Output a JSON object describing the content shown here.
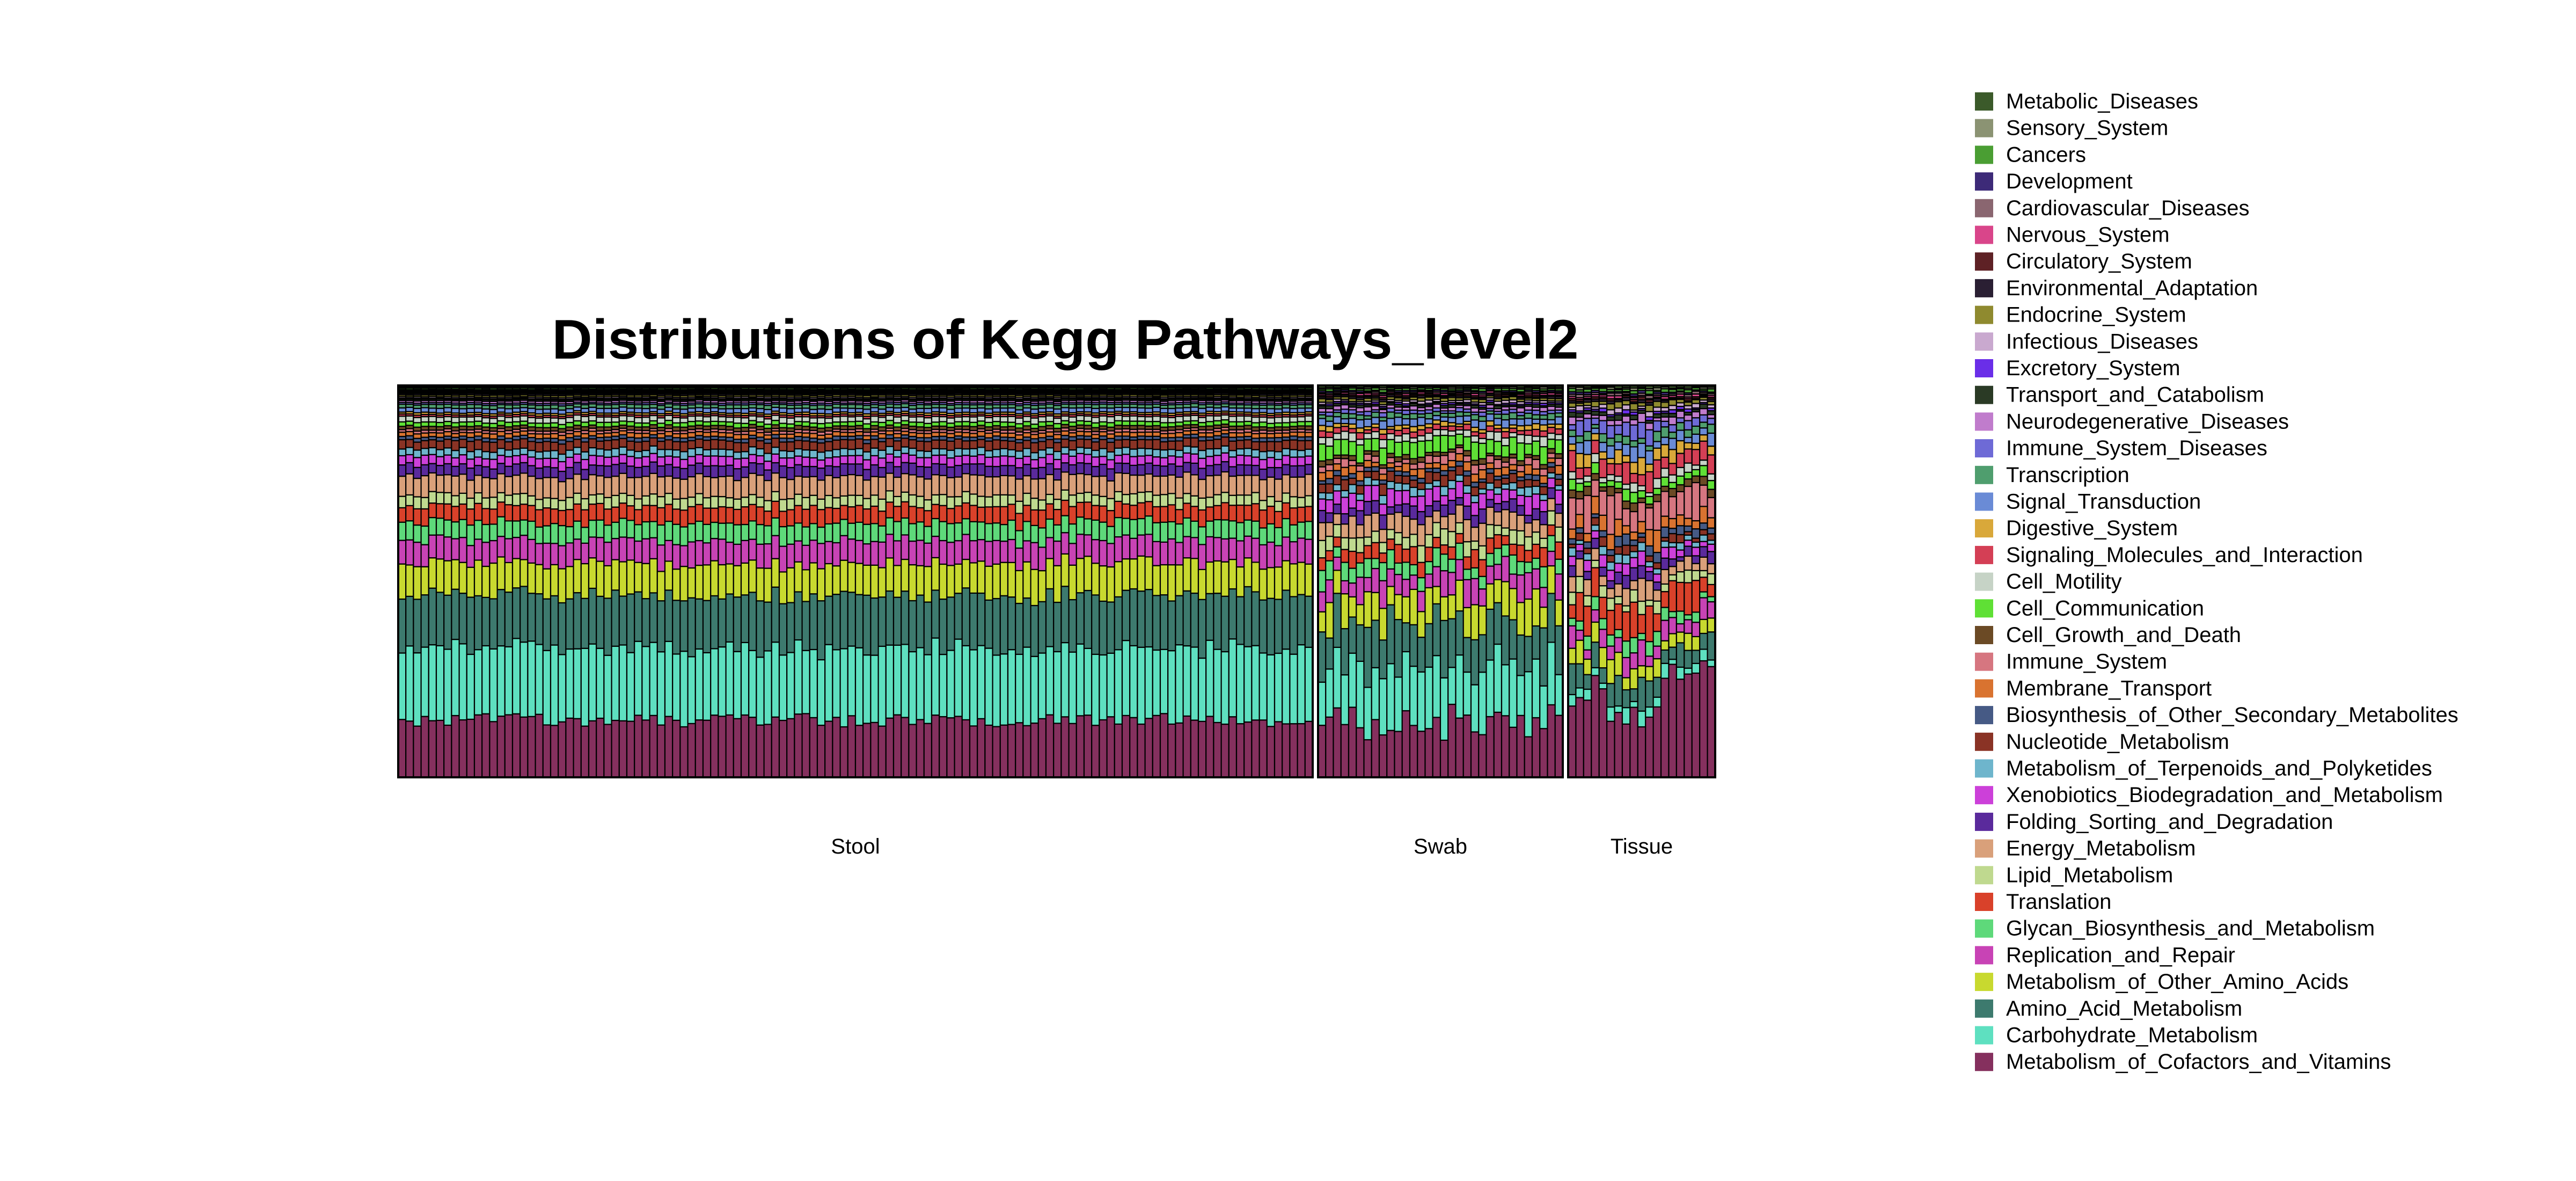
{
  "chart_data": {
    "type": "bar",
    "stacked": true,
    "normalized": true,
    "title": "Distributions of Kegg Pathways_level2",
    "xlabel": "",
    "ylabel": "",
    "ylim": [
      0,
      1
    ],
    "legend_position": "right",
    "groups": [
      {
        "name": "Stool",
        "n_samples": 120
      },
      {
        "name": "Swab",
        "n_samples": 32
      },
      {
        "name": "Tissue",
        "n_samples": 19
      }
    ],
    "series": [
      {
        "name": "Metabolic_Diseases",
        "color": "#3b5a2a",
        "mean_fraction": {
          "Stool": 0.004,
          "Swab": 0.005,
          "Tissue": 0.006
        }
      },
      {
        "name": "Sensory_System",
        "color": "#8b9373",
        "mean_fraction": {
          "Stool": 0.003,
          "Swab": 0.004,
          "Tissue": 0.005
        }
      },
      {
        "name": "Cancers",
        "color": "#4a9e33",
        "mean_fraction": {
          "Stool": 0.004,
          "Swab": 0.006,
          "Tissue": 0.007
        }
      },
      {
        "name": "Development",
        "color": "#3d2a78",
        "mean_fraction": {
          "Stool": 0.003,
          "Swab": 0.004,
          "Tissue": 0.005
        }
      },
      {
        "name": "Cardiovascular_Diseases",
        "color": "#8a6670",
        "mean_fraction": {
          "Stool": 0.003,
          "Swab": 0.004,
          "Tissue": 0.006
        }
      },
      {
        "name": "Nervous_System",
        "color": "#d9458a",
        "mean_fraction": {
          "Stool": 0.003,
          "Swab": 0.005,
          "Tissue": 0.006
        }
      },
      {
        "name": "Circulatory_System",
        "color": "#5e2125",
        "mean_fraction": {
          "Stool": 0.003,
          "Swab": 0.004,
          "Tissue": 0.005
        }
      },
      {
        "name": "Environmental_Adaptation",
        "color": "#2a1f33",
        "mean_fraction": {
          "Stool": 0.004,
          "Swab": 0.005,
          "Tissue": 0.006
        }
      },
      {
        "name": "Endocrine_System",
        "color": "#8f8a2f",
        "mean_fraction": {
          "Stool": 0.005,
          "Swab": 0.008,
          "Tissue": 0.012
        }
      },
      {
        "name": "Infectious_Diseases",
        "color": "#c9a9cf",
        "mean_fraction": {
          "Stool": 0.004,
          "Swab": 0.007,
          "Tissue": 0.01
        }
      },
      {
        "name": "Excretory_System",
        "color": "#6a2ee8",
        "mean_fraction": {
          "Stool": 0.003,
          "Swab": 0.005,
          "Tissue": 0.008
        }
      },
      {
        "name": "Transport_and_Catabolism",
        "color": "#2a3a25",
        "mean_fraction": {
          "Stool": 0.004,
          "Swab": 0.006,
          "Tissue": 0.01
        }
      },
      {
        "name": "Neurodegenerative_Diseases",
        "color": "#c07ccc",
        "mean_fraction": {
          "Stool": 0.006,
          "Swab": 0.01,
          "Tissue": 0.016
        }
      },
      {
        "name": "Immune_System_Diseases",
        "color": "#6e6ad6",
        "mean_fraction": {
          "Stool": 0.005,
          "Swab": 0.01,
          "Tissue": 0.03
        }
      },
      {
        "name": "Transcription",
        "color": "#4f9e6e",
        "mean_fraction": {
          "Stool": 0.01,
          "Swab": 0.014,
          "Tissue": 0.02
        }
      },
      {
        "name": "Signal_Transduction",
        "color": "#6a8bd6",
        "mean_fraction": {
          "Stool": 0.012,
          "Swab": 0.018,
          "Tissue": 0.03
        }
      },
      {
        "name": "Digestive_System",
        "color": "#d9a83a",
        "mean_fraction": {
          "Stool": 0.006,
          "Swab": 0.012,
          "Tissue": 0.03
        }
      },
      {
        "name": "Signaling_Molecules_and_Interaction",
        "color": "#d43f55",
        "mean_fraction": {
          "Stool": 0.006,
          "Swab": 0.014,
          "Tissue": 0.04
        }
      },
      {
        "name": "Cell_Motility",
        "color": "#c6d3c6",
        "mean_fraction": {
          "Stool": 0.015,
          "Swab": 0.02,
          "Tissue": 0.02
        }
      },
      {
        "name": "Cell_Communication",
        "color": "#5fe035",
        "mean_fraction": {
          "Stool": 0.012,
          "Swab": 0.04,
          "Tissue": 0.025
        }
      },
      {
        "name": "Cell_Growth_and_Death",
        "color": "#6b4a25",
        "mean_fraction": {
          "Stool": 0.01,
          "Swab": 0.012,
          "Tissue": 0.02
        }
      },
      {
        "name": "Immune_System",
        "color": "#d67680",
        "mean_fraction": {
          "Stool": 0.008,
          "Swab": 0.02,
          "Tissue": 0.08
        }
      },
      {
        "name": "Membrane_Transport",
        "color": "#d97330",
        "mean_fraction": {
          "Stool": 0.012,
          "Swab": 0.02,
          "Tissue": 0.04
        }
      },
      {
        "name": "Biosynthesis_of_Other_Secondary_Metabolites",
        "color": "#465a85",
        "mean_fraction": {
          "Stool": 0.01,
          "Swab": 0.012,
          "Tissue": 0.02
        }
      },
      {
        "name": "Nucleotide_Metabolism",
        "color": "#8a3325",
        "mean_fraction": {
          "Stool": 0.025,
          "Swab": 0.025,
          "Tissue": 0.02
        }
      },
      {
        "name": "Metabolism_of_Terpenoids_and_Polyketides",
        "color": "#6eb5cc",
        "mean_fraction": {
          "Stool": 0.02,
          "Swab": 0.02,
          "Tissue": 0.02
        }
      },
      {
        "name": "Xenobiotics_Biodegradation_and_Metabolism",
        "color": "#cc40d9",
        "mean_fraction": {
          "Stool": 0.025,
          "Swab": 0.04,
          "Tissue": 0.025
        }
      },
      {
        "name": "Folding_Sorting_and_Degradation",
        "color": "#5a2a9c",
        "mean_fraction": {
          "Stool": 0.03,
          "Swab": 0.03,
          "Tissue": 0.025
        }
      },
      {
        "name": "Energy_Metabolism",
        "color": "#d9a07a",
        "mean_fraction": {
          "Stool": 0.055,
          "Swab": 0.05,
          "Tissue": 0.04
        }
      },
      {
        "name": "Lipid_Metabolism",
        "color": "#bfd98f",
        "mean_fraction": {
          "Stool": 0.03,
          "Swab": 0.035,
          "Tissue": 0.03
        }
      },
      {
        "name": "Translation",
        "color": "#d9412a",
        "mean_fraction": {
          "Stool": 0.045,
          "Swab": 0.04,
          "Tissue": 0.07
        }
      },
      {
        "name": "Glycan_Biosynthesis_and_Metabolism",
        "color": "#5ed97a",
        "mean_fraction": {
          "Stool": 0.05,
          "Swab": 0.045,
          "Tissue": 0.03
        }
      },
      {
        "name": "Replication_and_Repair",
        "color": "#c843b5",
        "mean_fraction": {
          "Stool": 0.065,
          "Swab": 0.06,
          "Tissue": 0.045
        }
      },
      {
        "name": "Metabolism_of_Other_Amino_Acids",
        "color": "#c8d92f",
        "mean_fraction": {
          "Stool": 0.09,
          "Swab": 0.08,
          "Tissue": 0.05
        }
      },
      {
        "name": "Amino_Acid_Metabolism",
        "color": "#3d7a6e",
        "mean_fraction": {
          "Stool": 0.15,
          "Swab": 0.13,
          "Tissue": 0.06
        }
      },
      {
        "name": "Carbohydrate_Metabolism",
        "color": "#5ee0c0",
        "mean_fraction": {
          "Stool": 0.2,
          "Swab": 0.16,
          "Tissue": 0.03
        }
      },
      {
        "name": "Metabolism_of_Cofactors_and_Vitamins",
        "color": "#85305e",
        "mean_fraction": {
          "Stool": 0.16,
          "Swab": 0.16,
          "Tissue": 0.25
        }
      }
    ]
  }
}
